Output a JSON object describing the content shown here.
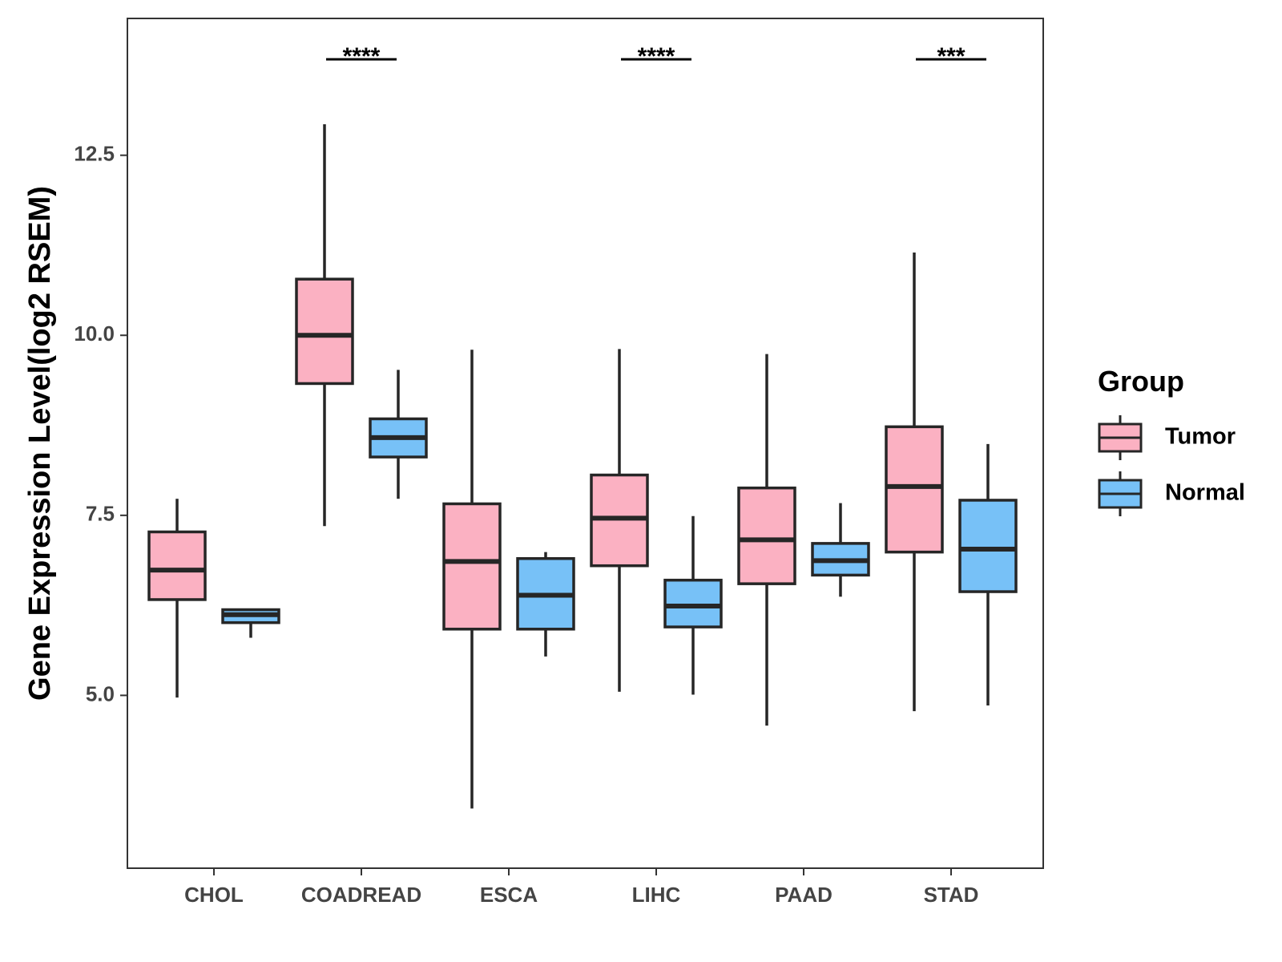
{
  "chart_data": {
    "type": "boxplot",
    "title": "",
    "xlabel": "",
    "ylabel": "Gene Expression Level(log2 RSEM)",
    "ylim": [
      2.6,
      14.4
    ],
    "yticks": [
      5.0,
      7.5,
      10.0,
      12.5
    ],
    "ytick_labels": [
      "5.0",
      "7.5",
      "10.0",
      "12.5"
    ],
    "categories": [
      "CHOL",
      "COADREAD",
      "ESCA",
      "LIHC",
      "PAAD",
      "STAD"
    ],
    "series": [
      {
        "name": "Tumor",
        "color": "#FBB1C2",
        "boxes": [
          {
            "min": 4.97,
            "q1": 6.33,
            "median": 6.74,
            "q3": 7.27,
            "max": 7.73
          },
          {
            "min": 7.35,
            "q1": 9.33,
            "median": 10.0,
            "q3": 10.78,
            "max": 12.93
          },
          {
            "min": 3.43,
            "q1": 5.92,
            "median": 6.86,
            "q3": 7.66,
            "max": 9.8
          },
          {
            "min": 5.05,
            "q1": 6.8,
            "median": 7.46,
            "q3": 8.06,
            "max": 9.81
          },
          {
            "min": 4.58,
            "q1": 6.55,
            "median": 7.16,
            "q3": 7.88,
            "max": 9.74
          },
          {
            "min": 4.78,
            "q1": 6.99,
            "median": 7.9,
            "q3": 8.73,
            "max": 11.15
          }
        ]
      },
      {
        "name": "Normal",
        "color": "#77C1F7",
        "boxes": [
          {
            "min": 5.8,
            "q1": 6.01,
            "median": 6.12,
            "q3": 6.19,
            "max": 6.19
          },
          {
            "min": 7.73,
            "q1": 8.31,
            "median": 8.58,
            "q3": 8.84,
            "max": 9.52
          },
          {
            "min": 5.54,
            "q1": 5.92,
            "median": 6.39,
            "q3": 6.9,
            "max": 6.99
          },
          {
            "min": 5.01,
            "q1": 5.95,
            "median": 6.24,
            "q3": 6.6,
            "max": 7.49
          },
          {
            "min": 6.37,
            "q1": 6.67,
            "median": 6.87,
            "q3": 7.11,
            "max": 7.67
          },
          {
            "min": 4.86,
            "q1": 6.44,
            "median": 7.03,
            "q3": 7.71,
            "max": 8.49
          }
        ]
      }
    ],
    "significance": [
      {
        "category": "COADREAD",
        "label": "****"
      },
      {
        "category": "LIHC",
        "label": "****"
      },
      {
        "category": "STAD",
        "label": "***"
      }
    ],
    "legend": {
      "title": "Group",
      "placement": "right",
      "entries": [
        "Tumor",
        "Normal"
      ]
    },
    "grid": false
  }
}
